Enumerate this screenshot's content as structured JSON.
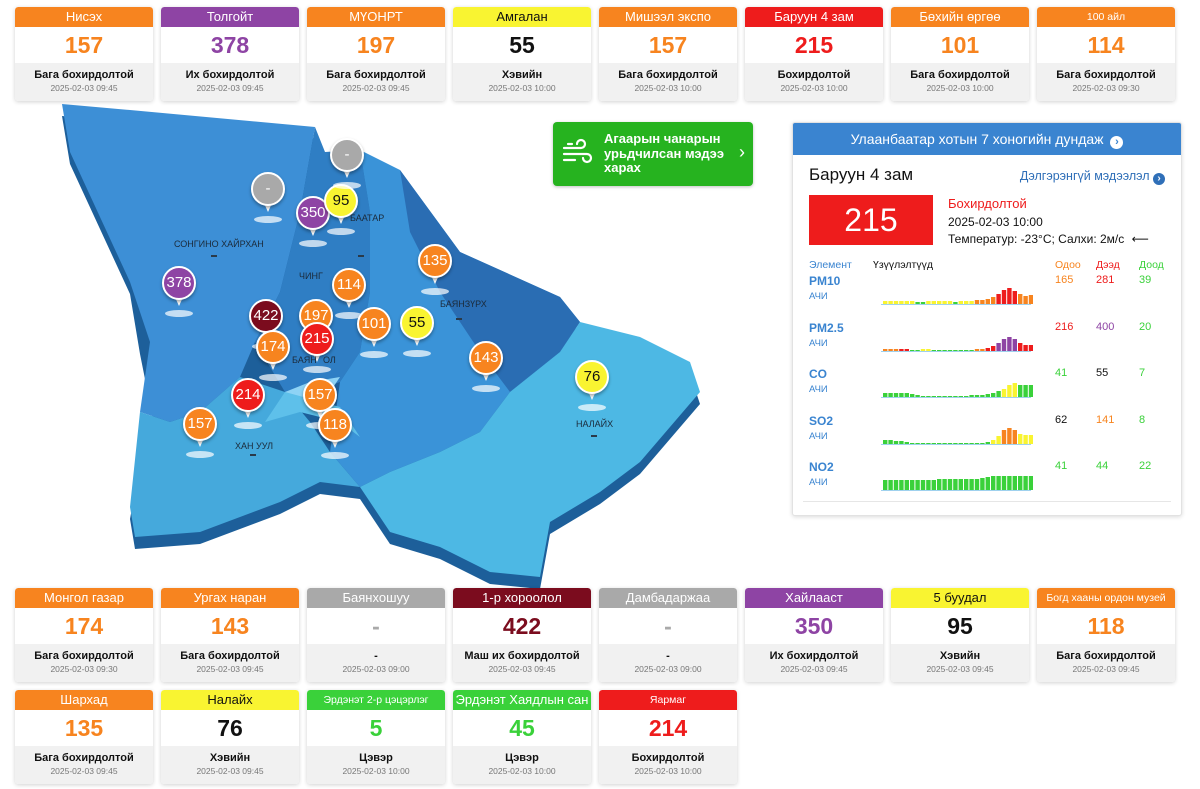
{
  "top_cards": [
    {
      "name": "Нисэх",
      "value": "157",
      "status": "Бага бохирдолтой",
      "time": "2025-02-03 09:45",
      "color": "#f7841f",
      "vcolor": "#f7841f"
    },
    {
      "name": "Толгойт",
      "value": "378",
      "status": "Их бохирдолтой",
      "time": "2025-02-03 09:45",
      "color": "#8e44a4",
      "vcolor": "#8e44a4"
    },
    {
      "name": "МҮОНРТ",
      "value": "197",
      "status": "Бага бохирдолтой",
      "time": "2025-02-03 09:45",
      "color": "#f7841f",
      "vcolor": "#f7841f"
    },
    {
      "name": "Амгалан",
      "value": "55",
      "status": "Хэвийн",
      "time": "2025-02-03 10:00",
      "color": "#f9f431",
      "vcolor": "#111111",
      "hcolor": "#111111"
    },
    {
      "name": "Мишээл экспо",
      "value": "157",
      "status": "Бага бохирдолтой",
      "time": "2025-02-03 10:00",
      "color": "#f7841f",
      "vcolor": "#f7841f"
    },
    {
      "name": "Баруун 4 зам",
      "value": "215",
      "status": "Бохирдолтой",
      "time": "2025-02-03 10:00",
      "color": "#ee1c1c",
      "vcolor": "#ee1c1c"
    },
    {
      "name": "Бөхийн өргөө",
      "value": "101",
      "status": "Бага бохирдолтой",
      "time": "2025-02-03 10:00",
      "color": "#f7841f",
      "vcolor": "#f7841f"
    },
    {
      "name": "100 айл",
      "value": "114",
      "status": "Бага бохирдолтой",
      "time": "2025-02-03 09:30",
      "color": "#f7841f",
      "vcolor": "#f7841f",
      "small": true
    }
  ],
  "bottom_cards": [
    {
      "name": "Монгол газар",
      "value": "174",
      "status": "Бага бохирдолтой",
      "time": "2025-02-03 09:30",
      "color": "#f7841f",
      "vcolor": "#f7841f"
    },
    {
      "name": "Ургах наран",
      "value": "143",
      "status": "Бага бохирдолтой",
      "time": "2025-02-03 09:45",
      "color": "#f7841f",
      "vcolor": "#f7841f"
    },
    {
      "name": "Баянхошуу",
      "value": "-",
      "status": "-",
      "time": "2025-02-03 09:00",
      "color": "#a9a9a9",
      "vcolor": "#a9a9a9"
    },
    {
      "name": "1-р хороолол",
      "value": "422",
      "status": "Маш их бохирдолтой",
      "time": "2025-02-03 09:45",
      "color": "#7b0c1e",
      "vcolor": "#7b0c1e"
    },
    {
      "name": "Дамбадаржаа",
      "value": "-",
      "status": "-",
      "time": "2025-02-03 09:00",
      "color": "#a9a9a9",
      "vcolor": "#a9a9a9"
    },
    {
      "name": "Хайлааст",
      "value": "350",
      "status": "Их бохирдолтой",
      "time": "2025-02-03 09:45",
      "color": "#8e44a4",
      "vcolor": "#8e44a4"
    },
    {
      "name": "5 буудал",
      "value": "95",
      "status": "Хэвийн",
      "time": "2025-02-03 09:45",
      "color": "#f9f431",
      "vcolor": "#111111",
      "hcolor": "#111111"
    },
    {
      "name": "Богд хааны ордон музей",
      "value": "118",
      "status": "Бага бохирдолтой",
      "time": "2025-02-03 09:45",
      "color": "#f7841f",
      "vcolor": "#f7841f",
      "small": true
    }
  ],
  "third_cards": [
    {
      "name": "Шархад",
      "value": "135",
      "status": "Бага бохирдолтой",
      "time": "2025-02-03 09:45",
      "color": "#f7841f",
      "vcolor": "#f7841f"
    },
    {
      "name": "Налайх",
      "value": "76",
      "status": "Хэвийн",
      "time": "2025-02-03 09:45",
      "color": "#f9f431",
      "vcolor": "#111111",
      "hcolor": "#111111"
    },
    {
      "name": "Эрдэнэт 2-р цэцэрлэг",
      "value": "5",
      "status": "Цэвэр",
      "time": "2025-02-03 10:00",
      "color": "#3ad13a",
      "vcolor": "#3ad13a",
      "small": true
    },
    {
      "name": "Эрдэнэт Хаядлын сан",
      "value": "45",
      "status": "Цэвэр",
      "time": "2025-02-03 10:00",
      "color": "#3ad13a",
      "vcolor": "#3ad13a"
    },
    {
      "name": "Яармаг",
      "value": "214",
      "status": "Бохирдолтой",
      "time": "2025-02-03 10:00",
      "color": "#ee1c1c",
      "vcolor": "#ee1c1c",
      "small": true
    }
  ],
  "map": {
    "districts": [
      "СОНГИНО ХАЙРХАН",
      "ЧИНГ",
      "БААТАР",
      "БАЯНЗҮРХ",
      "НАЛАЙХ",
      "ХАН УУЛ",
      "БАЯН",
      "ОЛ"
    ],
    "pins": [
      "378",
      "-",
      "350",
      "95",
      "-",
      "135",
      "114",
      "197",
      "422",
      "215",
      "174",
      "101",
      "55",
      "143",
      "76",
      "214",
      "157",
      "157",
      "118"
    ]
  },
  "forecast": {
    "label": "Агаарын чанарын урьдчилсан мэдээ харах",
    "chevron": "›"
  },
  "panel": {
    "header": "Улаанбаатар хотын 7 хоногийн дундаж",
    "station": "Баруун 4 зам",
    "more": "Дэлгэрэнгүй мэдээлэл",
    "value": "215",
    "status": "Бохирдолтой",
    "time": "2025-02-03 10:00",
    "weather": "Температур: -23°C; Салхи: 2м/с",
    "columns": {
      "element": "Элемент",
      "trend": "Үзүүлэлтүүд",
      "now": "Одоо",
      "max": "Дээд",
      "min": "Доод"
    },
    "rows": [
      {
        "name": "PM10",
        "unit": "АЧИ",
        "now": "165",
        "max": "281",
        "min": "39"
      },
      {
        "name": "PM2.5",
        "unit": "АЧИ",
        "now": "216",
        "max": "400",
        "min": "20"
      },
      {
        "name": "CO",
        "unit": "АЧИ",
        "now": "41",
        "max": "55",
        "min": "7"
      },
      {
        "name": "SO2",
        "unit": "АЧИ",
        "now": "62",
        "max": "141",
        "min": "8"
      },
      {
        "name": "NO2",
        "unit": "АЧИ",
        "now": "41",
        "max": "44",
        "min": "22"
      }
    ]
  }
}
